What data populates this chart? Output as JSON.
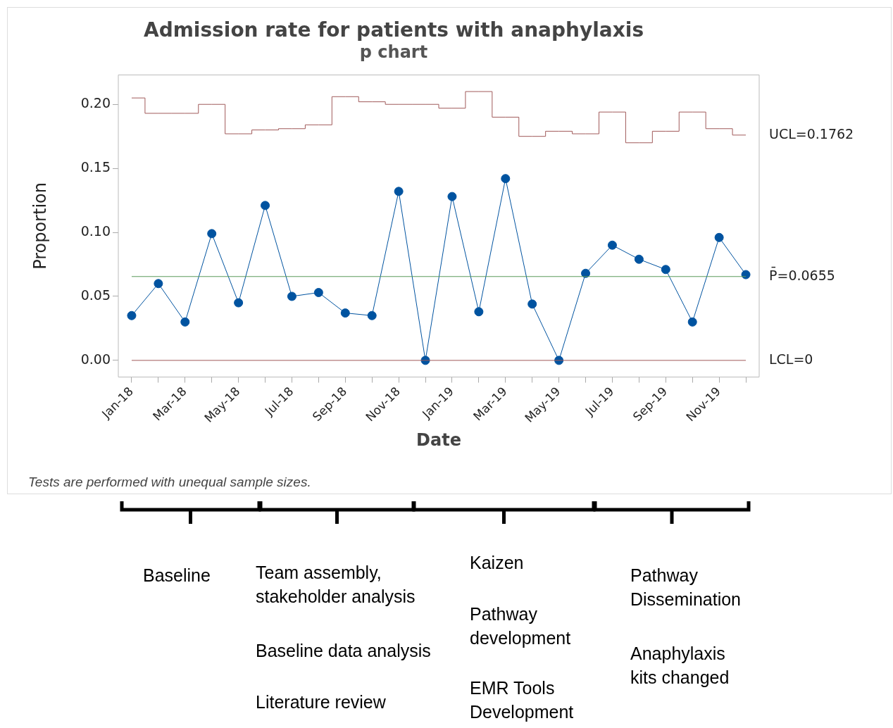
{
  "chart_data": {
    "type": "line",
    "title": "Admission rate for patients with anaphylaxis",
    "subtitle": "p chart",
    "xlabel": "Date",
    "ylabel": "Proportion",
    "categories": [
      "Jan-18",
      null,
      "Mar-18",
      null,
      "May-18",
      null,
      "Jul-18",
      null,
      "Sep-18",
      null,
      "Nov-18",
      null,
      "Jan-19",
      null,
      "Mar-19",
      null,
      "May-19",
      null,
      "Jul-19",
      null,
      "Sep-19",
      null,
      "Nov-19",
      null
    ],
    "series": [
      {
        "color": "#0053a0",
        "marker": "circle",
        "line_style": "solid",
        "values": [
          0.035,
          0.06,
          0.03,
          0.099,
          0.045,
          0.121,
          0.05,
          0.053,
          0.037,
          0.035,
          0.132,
          0,
          0.128,
          0.038,
          0.142,
          0.044,
          0,
          0.068,
          0.09,
          0.079,
          0.071,
          0.03,
          0.096,
          0.067
        ]
      },
      {
        "type": "step",
        "name": "UCL=0.1762",
        "color": "#a05a5a",
        "marker": "none",
        "line_style": "solid",
        "values": [
          0.205,
          0.193,
          0.193,
          0.2,
          0.177,
          0.18,
          0.181,
          0.184,
          0.206,
          0.202,
          0.2,
          0.2,
          0.197,
          0.21,
          0.19,
          0.175,
          0.179,
          0.177,
          0.194,
          0.17,
          0.179,
          0.194,
          0.181,
          0.176
        ]
      }
    ],
    "ref_lines": [
      {
        "axis": "y",
        "value": 0.0655,
        "label": "P̄=0.0655",
        "color": "#5a9a5a"
      },
      {
        "axis": "y",
        "value": 0,
        "label": "LCL=0",
        "color": "#a05a5a"
      }
    ],
    "ylim": [
      -0.013,
      0.223
    ],
    "yticks": [
      {
        "value": 0,
        "label": "0.00"
      },
      {
        "value": 0.05,
        "label": "0.05"
      },
      {
        "value": 0.1,
        "label": "0.10"
      },
      {
        "value": 0.15,
        "label": "0.15"
      },
      {
        "value": 0.2,
        "label": "0.20"
      }
    ],
    "grid": false,
    "legend": false,
    "annotations": [
      "Tests are performed with unequal sample sizes.",
      "Baseline",
      "Team assembly, stakeholder analysis",
      "Baseline data analysis",
      "Literature review",
      "Kaizen",
      "Pathway development",
      "EMR Tools Development",
      "Pathway Dissemination",
      "Anaphylaxis kits changed"
    ]
  }
}
